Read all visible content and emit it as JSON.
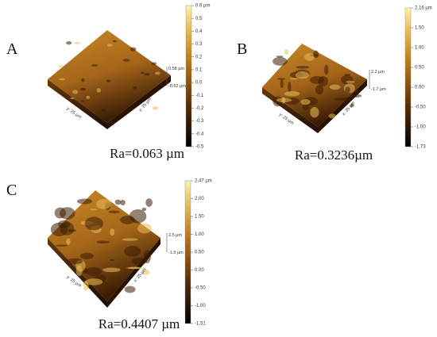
{
  "panels": [
    {
      "label": "A",
      "z_max": "0.58 µm",
      "z_min": "-0.52 µm",
      "y_axis": "y: 25 µm",
      "x_axis": "x: 25 µm",
      "colorbar_ticks": [
        "0.6 µm",
        "0.5",
        "0.4",
        "0.3",
        "0.2",
        "0.1",
        "0.0",
        "-0.1",
        "-0.2",
        "-0.3",
        "-0.4",
        "-0.5"
      ],
      "ra": "Ra=0.063 µm"
    },
    {
      "label": "B",
      "z_max": "2.2 µm",
      "z_min": "-1.7 µm",
      "y_axis": "y: 25 µm",
      "x_axis": "x: 25 µm",
      "colorbar_ticks": [
        "2.16 µm",
        "1.50",
        "1.00",
        "0.50",
        "0.00",
        "-0.50",
        "-1.00",
        "-1.73"
      ],
      "ra": "Ra=0.3236µm"
    },
    {
      "label": "C",
      "z_max": "2.5 µm",
      "z_min": "-1.5 µm",
      "y_axis": "y: 25 µm",
      "x_axis": "x: 25 µm",
      "colorbar_ticks": [
        "2.47 µm",
        "2.00",
        "1.50",
        "1.00",
        "0.50",
        "0.00",
        "-0.50",
        "-1.00",
        "-1.51"
      ],
      "ra": "Ra=0.4407 µm"
    }
  ]
}
